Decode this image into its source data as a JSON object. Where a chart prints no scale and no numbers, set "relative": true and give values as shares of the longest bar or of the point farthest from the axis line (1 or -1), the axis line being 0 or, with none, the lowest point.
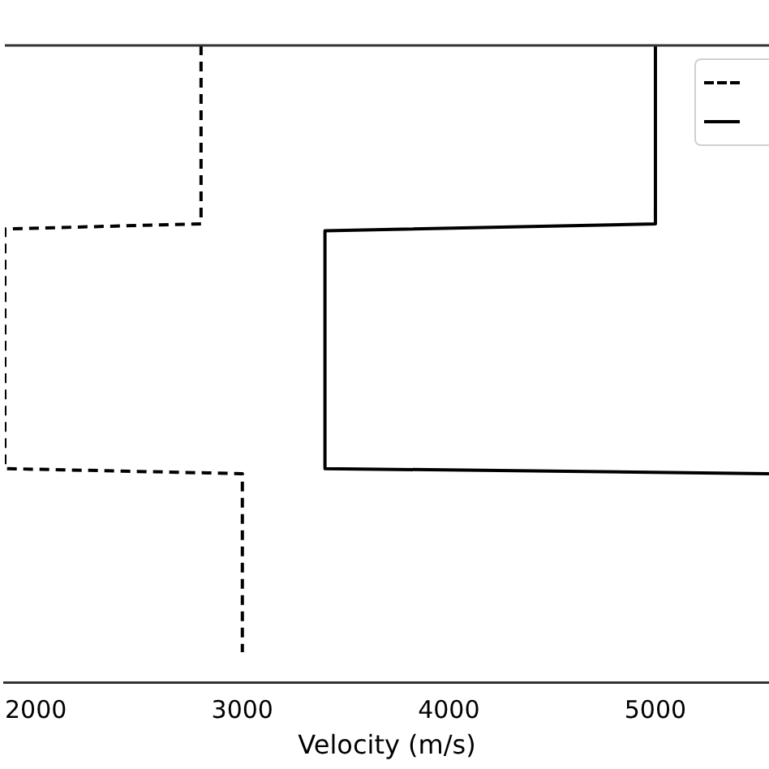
{
  "chart_data": {
    "type": "line",
    "xlabel": "Velocity (m/s)",
    "xlim": [
      1850,
      5550
    ],
    "xticks": [
      2000,
      3000,
      4000,
      5000
    ],
    "relative": true,
    "marker": "none",
    "series": [
      {
        "line_style": "dashed",
        "color": "#000000",
        "x": [
          2800,
          2800,
          1850,
          1850,
          3000,
          3000
        ],
        "values": [
          1,
          0.72,
          0.712,
          0.336,
          0.328,
          0.048
        ]
      },
      {
        "line_style": "solid",
        "color": "#000000",
        "x": [
          5000,
          5000,
          3400,
          3400,
          5550
        ],
        "values": [
          1,
          0.72,
          0.709,
          0.336,
          0.328
        ]
      }
    ]
  }
}
